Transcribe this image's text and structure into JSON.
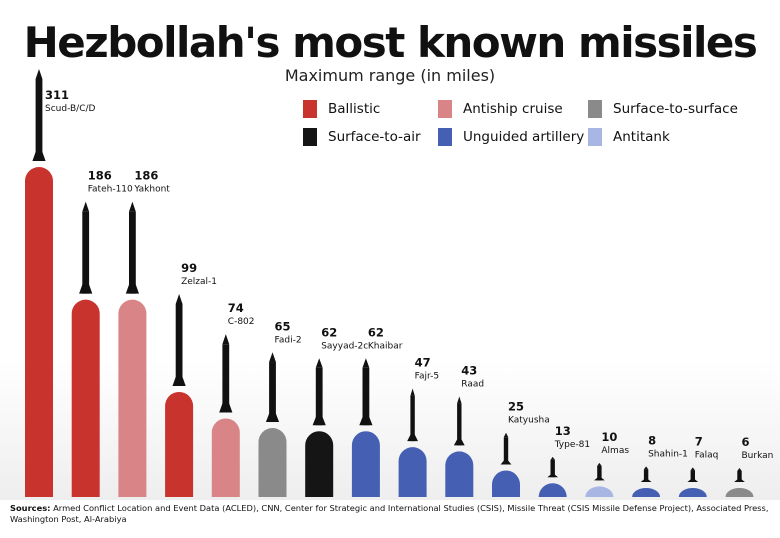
{
  "header": {
    "title": "Hezbollah's most known missiles",
    "subtitle": "Maximum range (in miles)"
  },
  "legend": [
    {
      "label": "Ballistic",
      "color": "#c8332e"
    },
    {
      "label": "Antiship cruise",
      "color": "#d98486"
    },
    {
      "label": "Surface-to-surface",
      "color": "#8a8a8a"
    },
    {
      "label": "Surface-to-air",
      "color": "#151515"
    },
    {
      "label": "Unguided artillery",
      "color": "#4560b3"
    },
    {
      "label": "Antitank",
      "color": "#a8b6e3"
    }
  ],
  "footer": {
    "sources_label": "Sources:",
    "sources_text": "Armed Conflict Location and Event Data (ACLED), CNN, Center for Strategic and International Studies (CSIS), Missile Threat (CSIS Missile Defense Project), Associated Press, Washington Post, Al-Arabiya"
  },
  "chart_data": {
    "type": "bar",
    "title": "Hezbollah's most known missiles",
    "subtitle": "Maximum range (in miles)",
    "categories": [
      "Scud-B/C/D",
      "Fateh-110",
      "Yakhont",
      "Zelzal-1",
      "C-802",
      "Fadi-2",
      "Sayyad-2c",
      "Khaibar",
      "Fajr-5",
      "Raad",
      "Katyusha",
      "Type-81",
      "Almas",
      "Shahin-1",
      "Falaq",
      "Burkan"
    ],
    "values": [
      311,
      186,
      186,
      99,
      74,
      65,
      62,
      62,
      47,
      43,
      25,
      13,
      10,
      8,
      7,
      6
    ],
    "value_labels": [
      "311",
      "186",
      "186",
      "99",
      "74",
      "65",
      "62",
      "62",
      "47",
      "43",
      "25",
      "13",
      "10",
      "8",
      "7",
      "6"
    ],
    "types": [
      "Ballistic",
      "Ballistic",
      "Antiship cruise",
      "Ballistic",
      "Antiship cruise",
      "Surface-to-surface",
      "Surface-to-air",
      "Unguided artillery",
      "Unguided artillery",
      "Unguided artillery",
      "Unguided artillery",
      "Unguided artillery",
      "Antitank",
      "Unguided artillery",
      "Unguided artillery",
      "Surface-to-surface"
    ],
    "colors": [
      "#c8332e",
      "#c8332e",
      "#d98486",
      "#c8332e",
      "#d98486",
      "#8a8a8a",
      "#151515",
      "#4560b3",
      "#4560b3",
      "#4560b3",
      "#4560b3",
      "#4560b3",
      "#a8b6e3",
      "#4560b3",
      "#4560b3",
      "#8a8a8a"
    ],
    "missile_icon_color": "#111111",
    "legend_placement": "top-right",
    "grid": false
  }
}
